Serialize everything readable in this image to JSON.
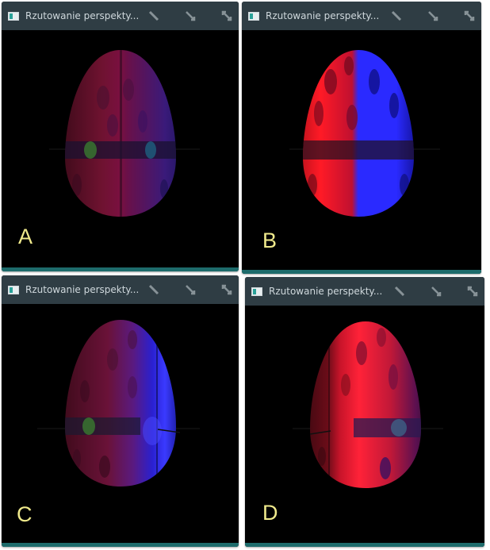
{
  "window_title": "Rzutowanie perspekty...",
  "panels": [
    {
      "label": "A"
    },
    {
      "label": "B"
    },
    {
      "label": "C"
    },
    {
      "label": "D"
    }
  ],
  "colors": {
    "titlebar": "#2f3d44",
    "footer": "#1d6b6b",
    "label": "#f0ea8c",
    "egg_red": "#ff1a2e",
    "egg_blue": "#2a2cff"
  },
  "icons": [
    "app-window-icon",
    "minimize-icon",
    "restore-icon",
    "maximize-icon"
  ]
}
